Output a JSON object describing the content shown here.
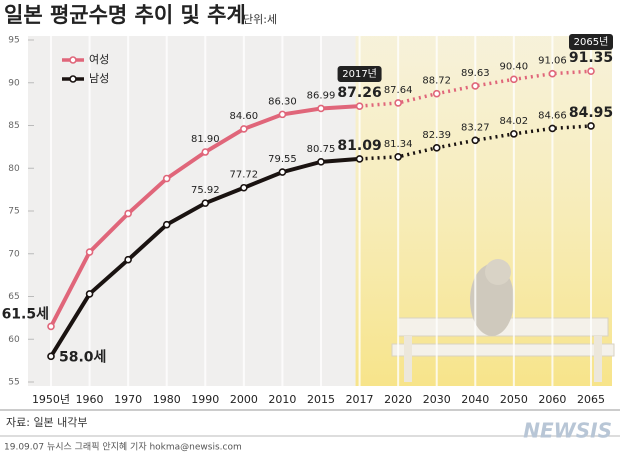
{
  "chart_data": {
    "type": "line",
    "title": "일본 평균수명 추이 및 추계",
    "unit": "단위:세",
    "categories": [
      "1950년",
      "1960",
      "1970",
      "1980",
      "1990",
      "2000",
      "2010",
      "2015",
      "2017",
      "2020",
      "2030",
      "2040",
      "2050",
      "2060",
      "2065"
    ],
    "series": [
      {
        "name": "여성",
        "color": "#e0667a",
        "values": [
          61.5,
          70.2,
          74.7,
          78.8,
          81.9,
          84.6,
          86.3,
          86.99,
          87.26,
          87.64,
          88.72,
          89.63,
          90.4,
          91.06,
          91.35
        ],
        "value_labels": [
          "61.5세",
          null,
          null,
          null,
          "81.90",
          "84.60",
          "86.30",
          "86.99",
          "87.26",
          "87.64",
          "88.72",
          "89.63",
          "90.40",
          "91.06",
          "91.35"
        ]
      },
      {
        "name": "남성",
        "color": "#1a1311",
        "values": [
          58.0,
          65.3,
          69.3,
          73.4,
          75.92,
          77.72,
          79.55,
          80.75,
          81.09,
          81.34,
          82.39,
          83.27,
          84.02,
          84.66,
          84.95
        ],
        "value_labels": [
          "58.0세",
          null,
          null,
          null,
          "75.92",
          "77.72",
          "79.55",
          "80.75",
          "81.09",
          "81.34",
          "82.39",
          "83.27",
          "84.02",
          "84.66",
          "84.95"
        ]
      }
    ],
    "ylim": [
      55,
      95
    ],
    "yticks": [
      55,
      60,
      65,
      70,
      75,
      80,
      85,
      90,
      95
    ],
    "grid": true,
    "legend": "top-left",
    "forecast_start": "2017",
    "annotations": [
      "2017년",
      "2065년"
    ],
    "source": "자료: 일본 내각부",
    "credit": "19.09.07 뉴시스 그래픽 안지혜 기자 hokma@newsis.com",
    "watermark": "NEWSIS"
  }
}
